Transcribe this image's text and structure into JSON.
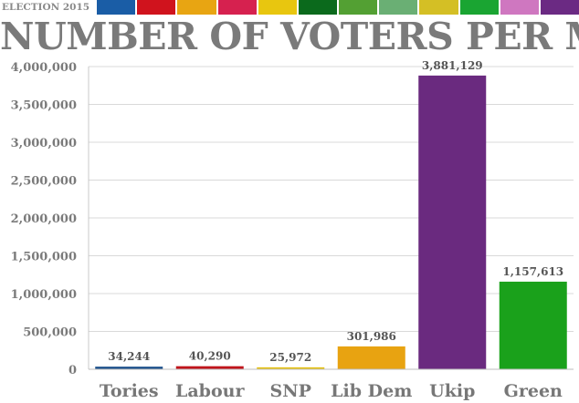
{
  "header": {
    "election_label": "ELECTION 2015",
    "swatch_colors": [
      "#1a5da6",
      "#d0131d",
      "#e8a512",
      "#d6214f",
      "#e8c60f",
      "#0b6a1c",
      "#53a033",
      "#6aaf74",
      "#d4bf25",
      "#1aa532",
      "#cf77c0",
      "#6b2a83"
    ]
  },
  "chart_data": {
    "type": "bar",
    "title": "NUMBER OF VOTERS PER MP",
    "categories": [
      "Tories",
      "Labour",
      "SNP",
      "Lib Dem",
      "Ukip",
      "Green"
    ],
    "values": [
      34244,
      40290,
      25972,
      301986,
      3881129,
      1157613
    ],
    "value_labels": [
      "34,244",
      "40,290",
      "25,972",
      "301,986",
      "3,881,129",
      "1,157,613"
    ],
    "colors": [
      "#1a4f8a",
      "#c0141b",
      "#e5c10f",
      "#e8a311",
      "#6a2a7f",
      "#1aa11b"
    ],
    "ylim": [
      0,
      4000000
    ],
    "yticks": [
      0,
      500000,
      1000000,
      1500000,
      2000000,
      2500000,
      3000000,
      3500000,
      4000000
    ],
    "ytick_labels": [
      "0",
      "500,000",
      "1,000,000",
      "1,500,000",
      "2,000,000",
      "2,500,000",
      "3,000,000",
      "3,500,000",
      "4,000,000"
    ],
    "xlabel": "",
    "ylabel": "",
    "grid": true,
    "legend": "none"
  }
}
